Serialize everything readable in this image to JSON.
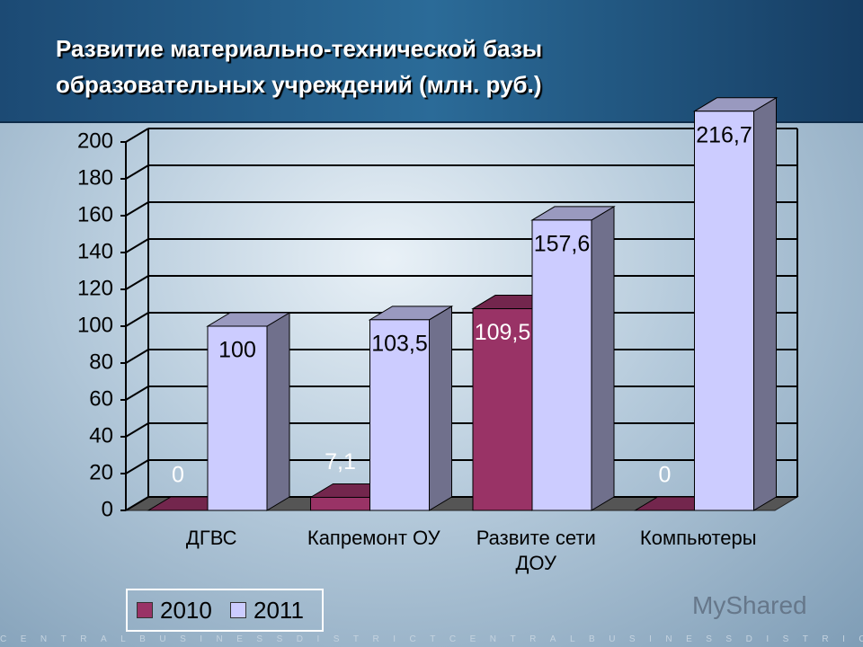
{
  "chart_data": {
    "type": "bar3d",
    "title": "Развитие материально-технической базы образовательных учреждений (млн. руб.)",
    "categories": [
      "ДГВС",
      "Капремонт ОУ",
      "Развите сети ДОУ",
      "Компьютеры"
    ],
    "series": [
      {
        "name": "2010",
        "color": "#993366",
        "values": [
          0,
          7.1,
          109.5,
          0
        ],
        "value_labels": [
          "0",
          "7,1",
          "109,5",
          "0"
        ]
      },
      {
        "name": "2011",
        "color": "#ccccff",
        "values": [
          100,
          103.5,
          157.6,
          216.7
        ],
        "value_labels": [
          "100",
          "103,5",
          "157,6",
          "216,7"
        ]
      }
    ],
    "ylim": [
      0,
      200
    ],
    "yticks": [
      0,
      20,
      40,
      60,
      80,
      100,
      120,
      140,
      160,
      180,
      200
    ],
    "grid": true,
    "legend": "bottom-left",
    "watermark": "MyShared",
    "footer_text": "CENTRALBUSINESSDISTRICTCENTRALBUSINESSDISTRICTCENTRA"
  }
}
